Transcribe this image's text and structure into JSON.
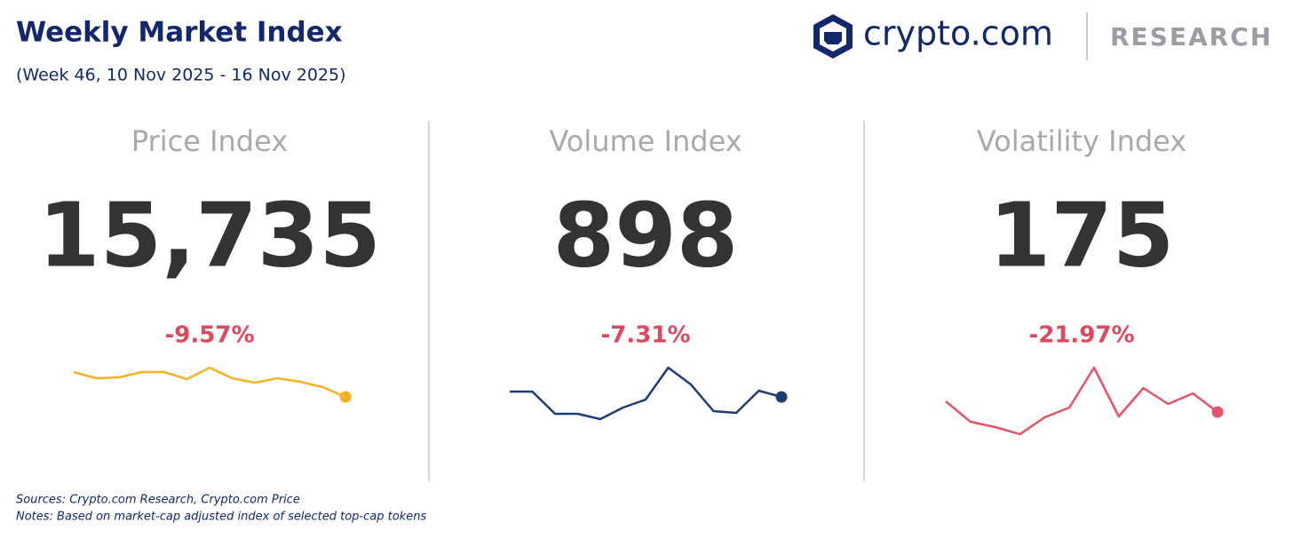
{
  "header": {
    "title": "Weekly Market Index",
    "subtitle": "(Week 46, 10 Nov 2025 - 16 Nov 2025)",
    "logo_text": "crypto.com",
    "logo_sub": "RESEARCH"
  },
  "chart_data": [
    {
      "type": "line",
      "title": "Price Index",
      "value": "15,735",
      "change": "-9.57%",
      "color": "#f5b224",
      "values": [
        81,
        74,
        75,
        81,
        81,
        73,
        86,
        74,
        69,
        74,
        70,
        64,
        53
      ]
    },
    {
      "type": "line",
      "title": "Volume Index",
      "value": "898",
      "change": "-7.31%",
      "color": "#1f3c72",
      "values": [
        59,
        59,
        34,
        34,
        28,
        41,
        50,
        86,
        67,
        37,
        35,
        60,
        53
      ]
    },
    {
      "type": "line",
      "title": "Volatility Index",
      "value": "175",
      "change": "-21.97%",
      "color": "#e5526a",
      "values": [
        48,
        25,
        19,
        11,
        30,
        41,
        86,
        31,
        63,
        45,
        57,
        36
      ]
    }
  ],
  "footer": {
    "sources": "Sources: Crypto.com Research,  Crypto.com Price",
    "notes": "Notes: Based on market-cap adjusted index of selected top-cap tokens"
  }
}
